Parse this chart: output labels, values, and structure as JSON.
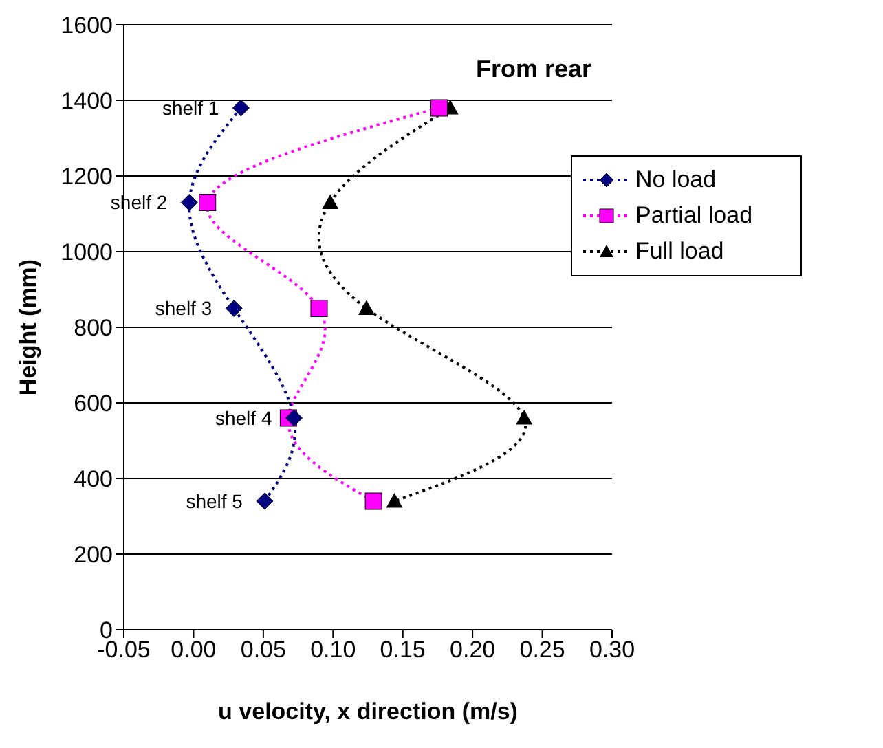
{
  "chart_data": {
    "type": "line",
    "title": "From rear",
    "xlabel": "u velocity, x direction (m/s)",
    "ylabel": "Height (mm)",
    "xlim": [
      -0.05,
      0.3
    ],
    "xticks": [
      -0.05,
      {
        "value": 0,
        "label": "0.00"
      },
      0.05,
      {
        "value": 0.1,
        "label": "0.10"
      },
      0.15,
      {
        "value": 0.2,
        "label": "0.20"
      },
      0.25,
      {
        "value": 0.3,
        "label": "0.30"
      }
    ],
    "ylim": [
      0,
      1600
    ],
    "yticks": [
      0,
      200,
      400,
      600,
      800,
      1000,
      1200,
      1400,
      1600
    ],
    "grid": "y",
    "legend": "right",
    "line_style": "dotted",
    "series": [
      {
        "name": "No load",
        "color": "#000080",
        "marker": "diamond",
        "x": [
          0.034,
          -0.003,
          0.029,
          0.072,
          0.051
        ],
        "values": [
          1380,
          1130,
          850,
          560,
          340
        ]
      },
      {
        "name": "Partial load",
        "color": "#ff00ff",
        "marker": "square",
        "x": [
          0.176,
          0.01,
          0.09,
          0.068,
          0.129
        ],
        "values": [
          1380,
          1130,
          850,
          560,
          340
        ]
      },
      {
        "name": "Full load",
        "color": "#000000",
        "marker": "triangle",
        "x": [
          0.184,
          0.098,
          0.124,
          0.237,
          0.144
        ],
        "values": [
          1380,
          1130,
          850,
          560,
          340
        ]
      }
    ],
    "annotations": [
      {
        "text": "shelf 1",
        "x": 0.034,
        "y": 1380
      },
      {
        "text": "shelf 2",
        "x": -0.003,
        "y": 1130
      },
      {
        "text": "shelf 3",
        "x": 0.029,
        "y": 850
      },
      {
        "text": "shelf 4",
        "x": 0.072,
        "y": 560
      },
      {
        "text": "shelf 5",
        "x": 0.051,
        "y": 340
      }
    ]
  }
}
